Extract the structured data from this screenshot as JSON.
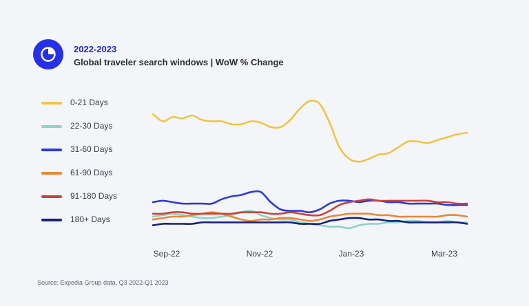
{
  "header": {
    "title": "2022-2023",
    "subtitle": "Global traveler search windows | WoW % Change"
  },
  "source": "Source: Expedia Group data, Q3 2022-Q1 2023",
  "chart_data": {
    "type": "line",
    "title": "Global traveler search windows | WoW % Change",
    "xlabel": "",
    "ylabel": "",
    "x_ticks": [
      "Sep-22",
      "Nov-22",
      "Jan-23",
      "Mar-23"
    ],
    "legend_position": "left",
    "grid": false,
    "note": "No numeric y-axis shown; values are relative levels read from the figure (0-100 scale).",
    "ylim": [
      0,
      100
    ],
    "series": [
      {
        "name": "0-21 Days",
        "color": "#f0c545",
        "values": [
          81,
          76,
          79,
          78,
          80,
          77,
          76,
          76,
          74,
          74,
          76,
          75,
          72,
          72,
          77,
          85,
          90,
          88,
          75,
          58,
          50,
          48,
          50,
          53,
          54,
          58,
          62,
          62,
          61,
          63,
          65,
          67,
          68
        ]
      },
      {
        "name": "22-30 Days",
        "color": "#8dd4c8",
        "values": [
          10,
          11,
          12,
          11,
          10,
          9,
          9,
          10,
          11,
          13,
          14,
          11,
          9,
          8,
          8,
          6,
          5,
          4,
          3,
          3,
          2,
          4,
          5,
          5,
          6,
          6,
          7,
          7,
          6,
          6,
          7,
          6,
          6
        ]
      },
      {
        "name": "31-60 Days",
        "color": "#2a3ae0",
        "values": [
          20,
          21,
          20,
          19,
          19,
          19,
          19,
          22,
          24,
          25,
          27,
          27,
          20,
          15,
          14,
          14,
          13,
          15,
          19,
          21,
          21,
          20,
          21,
          21,
          20,
          20,
          19,
          19,
          19,
          19,
          18,
          18,
          18
        ]
      },
      {
        "name": "61-90 Days",
        "color": "#e8883a",
        "values": [
          8,
          9,
          10,
          10,
          11,
          12,
          13,
          12,
          10,
          8,
          7,
          8,
          8,
          9,
          9,
          8,
          7,
          8,
          10,
          11,
          12,
          12,
          12,
          11,
          11,
          10,
          10,
          10,
          10,
          10,
          11,
          11,
          10
        ]
      },
      {
        "name": "91-180 Days",
        "color": "#c9433a",
        "values": [
          12,
          12,
          13,
          13,
          12,
          12,
          12,
          12,
          12,
          13,
          13,
          13,
          12,
          12,
          13,
          12,
          11,
          11,
          14,
          18,
          20,
          21,
          22,
          21,
          21,
          21,
          21,
          21,
          21,
          20,
          20,
          19,
          19
        ]
      },
      {
        "name": "180+ Days",
        "color": "#17207a",
        "values": [
          4,
          5,
          5,
          5,
          5,
          6,
          6,
          6,
          6,
          6,
          6,
          6,
          6,
          6,
          6,
          5,
          5,
          5,
          7,
          8,
          9,
          9,
          8,
          8,
          7,
          7,
          6,
          6,
          6,
          6,
          6,
          6,
          5
        ]
      }
    ]
  }
}
